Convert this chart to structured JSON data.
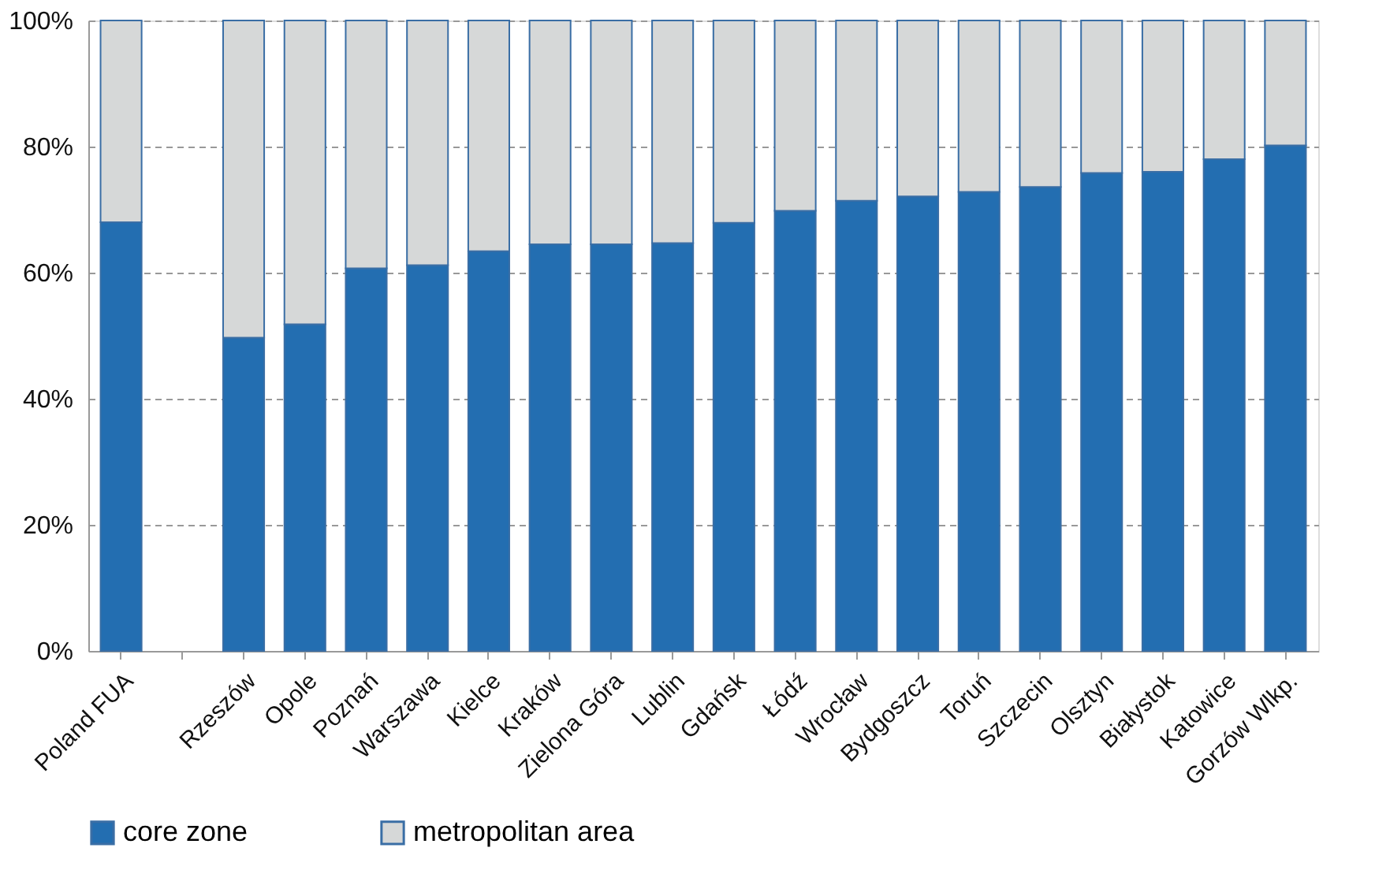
{
  "chart_data": {
    "type": "bar",
    "stacked": true,
    "categories": [
      "Poland FUA",
      null,
      "Rzeszów",
      "Opole",
      "Poznań",
      "Warszawa",
      "Kielce",
      "Kraków",
      "Zielona Góra",
      "Lublin",
      "Gdańsk",
      "Łódź",
      "Wrocław",
      "Bydgoszcz",
      "Toruń",
      "Szczecin",
      "Olsztyn",
      "Białystok",
      "Katowice",
      "Gorzów Wlkp."
    ],
    "series": [
      {
        "name": "core zone",
        "color": "#236eb1",
        "values": [
          68,
          null,
          49.7,
          51.8,
          60.7,
          61.2,
          63.4,
          64.5,
          64.5,
          64.7,
          67.9,
          69.8,
          71.4,
          72.1,
          72.8,
          73.6,
          75.8,
          76,
          78,
          80.2
        ]
      },
      {
        "name": "metropolitan area",
        "color": "#d6d8d8",
        "values": [
          32,
          null,
          50.3,
          48.2,
          39.3,
          38.8,
          36.6,
          35.5,
          35.5,
          35.3,
          32.1,
          30.2,
          28.6,
          27.9,
          27.2,
          26.4,
          24.2,
          24,
          22,
          19.8
        ]
      }
    ],
    "ylim": [
      0,
      100
    ],
    "yticks": [
      {
        "value": 0,
        "label": "0%"
      },
      {
        "value": 20,
        "label": "20%"
      },
      {
        "value": 40,
        "label": "40%"
      },
      {
        "value": 60,
        "label": "60%"
      },
      {
        "value": 80,
        "label": "80%"
      },
      {
        "value": 100,
        "label": "100%"
      }
    ],
    "grid": "y",
    "legend": "bottom"
  }
}
